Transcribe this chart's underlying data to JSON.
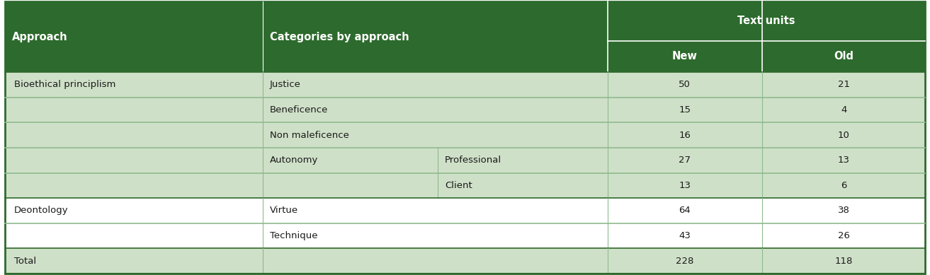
{
  "header_bg": "#2d6a2d",
  "header_text_color": "#ffffff",
  "row_bg_light": "#cfe0c8",
  "row_bg_white": "#ffffff",
  "total_bg": "#cfe0c8",
  "border_dark": "#2d6a2d",
  "border_light": "#8fba8f",
  "superheader": "Text units",
  "col_props": [
    0.28,
    0.19,
    0.185,
    0.1675,
    0.1775
  ],
  "rows": [
    {
      "approach": "Bioethical principlism",
      "cat1": "Justice",
      "cat2": "",
      "new": "50",
      "old": "21",
      "bg": "#cfe0c8"
    },
    {
      "approach": "",
      "cat1": "Beneficence",
      "cat2": "",
      "new": "15",
      "old": "4",
      "bg": "#cfe0c8"
    },
    {
      "approach": "",
      "cat1": "Non maleficence",
      "cat2": "",
      "new": "16",
      "old": "10",
      "bg": "#cfe0c8"
    },
    {
      "approach": "",
      "cat1": "Autonomy",
      "cat2": "Professional",
      "new": "27",
      "old": "13",
      "bg": "#cfe0c8"
    },
    {
      "approach": "",
      "cat1": "",
      "cat2": "Client",
      "new": "13",
      "old": "6",
      "bg": "#cfe0c8"
    },
    {
      "approach": "Deontology",
      "cat1": "Virtue",
      "cat2": "",
      "new": "64",
      "old": "38",
      "bg": "#ffffff"
    },
    {
      "approach": "",
      "cat1": "Technique",
      "cat2": "",
      "new": "43",
      "old": "26",
      "bg": "#ffffff"
    },
    {
      "approach": "Total",
      "cat1": "",
      "cat2": "",
      "new": "228",
      "old": "118",
      "bg": "#cfe0c8"
    }
  ]
}
